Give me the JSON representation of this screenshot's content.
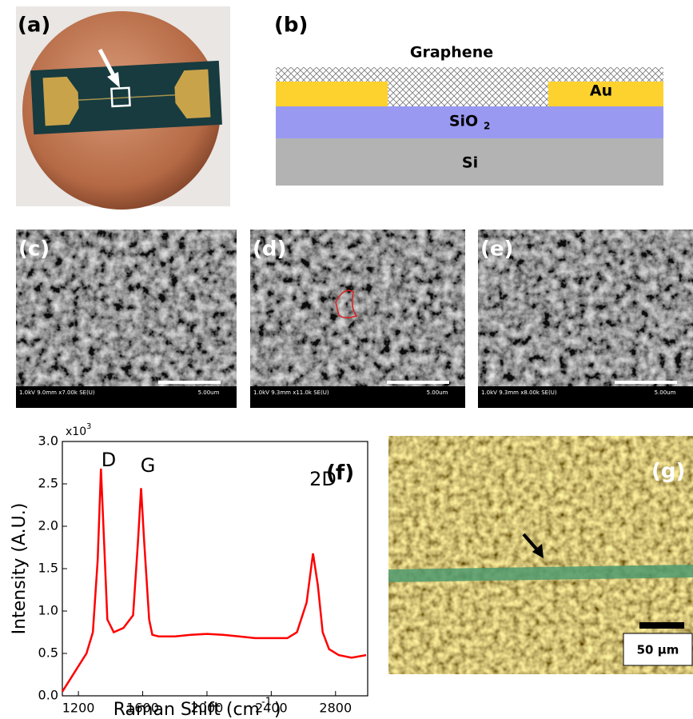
{
  "panel_a": {
    "label": "(a)"
  },
  "panel_b": {
    "label": "(b)",
    "graphene": "Graphene",
    "au": "Au",
    "sio2": "SiO",
    "sio2_sub": "2",
    "si": "Si"
  },
  "sem": [
    {
      "label": "(c)",
      "info": "1.0kV 9.0mm x7.00k SE(U)",
      "scale": "5.00um"
    },
    {
      "label": "(d)",
      "info": "1.0kV 9.3mm x11.0k SE(U)",
      "scale": "5.00um"
    },
    {
      "label": "(e)",
      "info": "1.0kV 9.3mm x8.00k SE(U)",
      "scale": "5.00um"
    }
  ],
  "chart_data": {
    "type": "line",
    "panel_label": "(f)",
    "x_label": "Raman Shift (cm",
    "x_label_sup": "-1",
    "x_label_end": ")",
    "y_label": "Intensity (A.U.)",
    "y_multiplier": "x10",
    "y_multiplier_sup": "3",
    "annotations": [
      "D",
      "G",
      "2D"
    ],
    "color": "#ff0000",
    "x": [
      1100,
      1150,
      1200,
      1250,
      1290,
      1320,
      1340,
      1360,
      1380,
      1420,
      1480,
      1540,
      1570,
      1590,
      1610,
      1640,
      1660,
      1700,
      1800,
      1900,
      2000,
      2100,
      2200,
      2300,
      2400,
      2500,
      2560,
      2620,
      2660,
      2690,
      2720,
      2760,
      2820,
      2900,
      2990
    ],
    "values": [
      0.05,
      0.2,
      0.35,
      0.5,
      0.75,
      1.6,
      2.68,
      1.8,
      0.9,
      0.75,
      0.8,
      0.95,
      1.8,
      2.45,
      1.8,
      0.9,
      0.72,
      0.7,
      0.7,
      0.72,
      0.73,
      0.72,
      0.7,
      0.68,
      0.68,
      0.68,
      0.75,
      1.1,
      1.68,
      1.3,
      0.75,
      0.55,
      0.48,
      0.45,
      0.48
    ],
    "xlim": [
      1100,
      3000
    ],
    "xticks": [
      1200,
      1600,
      2000,
      2400,
      2800
    ],
    "ylim": [
      0,
      3
    ],
    "yticks": [
      {
        "value": 0,
        "label": "0.0"
      },
      0.5,
      {
        "value": 1,
        "label": "1.0"
      },
      1.5,
      {
        "value": 2,
        "label": "2.0"
      },
      2.5,
      {
        "value": 3,
        "label": "3.0"
      }
    ]
  },
  "panel_g": {
    "label": "(g)",
    "scale": "50 µm"
  }
}
